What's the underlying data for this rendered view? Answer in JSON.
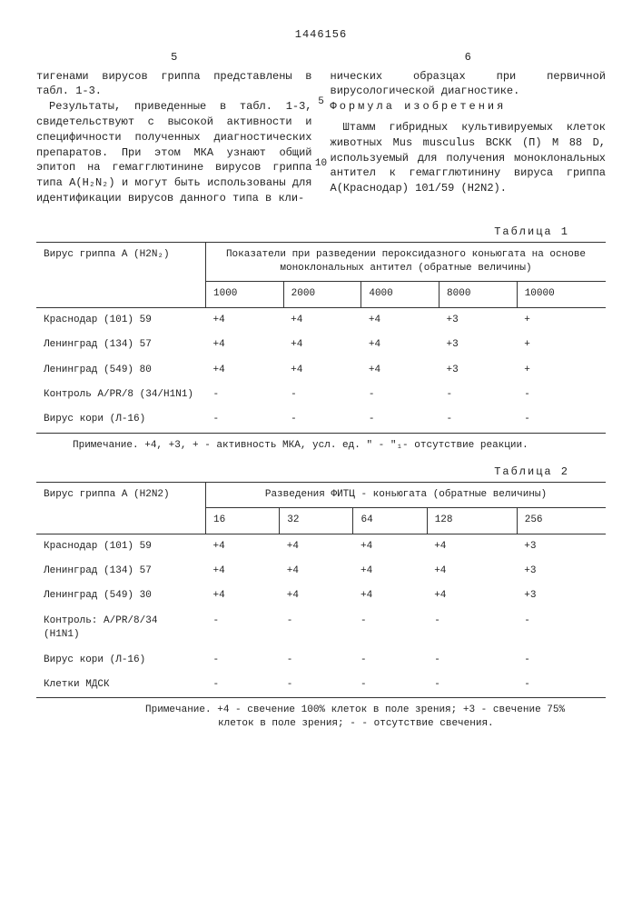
{
  "docNumber": "1446156",
  "leftColNum": "5",
  "rightColNum": "6",
  "leftCol": {
    "p1": "тигенами вирусов гриппа представлены в табл. 1-3.",
    "p2": "Результаты, приведенные в табл. 1-3, свидетельствуют с высокой активности и специфичности полученных диагностических препаратов. При этом МКА узнают общий эпитоп на гемагглютинине вирусов гриппа типа A(H₂N₂) и могут быть использованы для идентификации вирусов данного типа в кли-"
  },
  "lineMarkers": {
    "m5": "5",
    "m10": "10"
  },
  "rightCol": {
    "p1": "нических образцах при первичной вирусологической диагностике.",
    "formulaLabel": "Формула изобретения",
    "p2": "Штамм гибридных культивируемых клеток животных Mus musculus ВСКК (П) М 88 D, используемый для получения моноклональных антител к гемагглютинину вируса гриппа А(Краснодар) 101/59 (H2N2)."
  },
  "table1": {
    "label": "Таблица 1",
    "rowHeader": "Вирус гриппа A (H2N₂)",
    "colGroupHeader": "Показатели при разведении пероксидазного коньюгата на основе моноклональных антител (обратные величины)",
    "cols": [
      "1000",
      "2000",
      "4000",
      "8000",
      "10000"
    ],
    "rows": [
      {
        "name": "Краснодар (101) 59",
        "vals": [
          "+4",
          "+4",
          "+4",
          "+3",
          "+"
        ]
      },
      {
        "name": "Ленинград (134) 57",
        "vals": [
          "+4",
          "+4",
          "+4",
          "+3",
          "+"
        ]
      },
      {
        "name": "Ленинград (549) 80",
        "vals": [
          "+4",
          "+4",
          "+4",
          "+3",
          "+"
        ]
      },
      {
        "name": "Контроль A/PR/8 (34/H1N1)",
        "vals": [
          "-",
          "-",
          "-",
          "-",
          "-"
        ]
      },
      {
        "name": "Вирус кори (Л-16)",
        "vals": [
          "-",
          "-",
          "-",
          "-",
          "-"
        ]
      }
    ],
    "note": "Примечание. +4, +3, + - активность МКА, усл. ед. \" - \"₁- отсутствие реакции."
  },
  "table2": {
    "label": "Таблица 2",
    "rowHeader": "Вирус гриппа A (H2N2)",
    "colGroupHeader": "Разведения ФИТЦ - коньюгата (обратные величины)",
    "cols": [
      "16",
      "32",
      "64",
      "128",
      "256"
    ],
    "rows": [
      {
        "name": "Краснодар (101) 59",
        "vals": [
          "+4",
          "+4",
          "+4",
          "+4",
          "+3"
        ]
      },
      {
        "name": "Ленинград (134) 57",
        "vals": [
          "+4",
          "+4",
          "+4",
          "+4",
          "+3"
        ]
      },
      {
        "name": "Ленинград (549) 30",
        "vals": [
          "+4",
          "+4",
          "+4",
          "+4",
          "+3"
        ]
      },
      {
        "name": "Контроль: A/PR/8/34 (H1N1)",
        "vals": [
          "-",
          "-",
          "-",
          "-",
          "-"
        ]
      },
      {
        "name": "Вирус кори (Л-16)",
        "vals": [
          "-",
          "-",
          "-",
          "-",
          "-"
        ]
      },
      {
        "name": "Клетки МДСК",
        "vals": [
          "-",
          "-",
          "-",
          "-",
          "-"
        ]
      }
    ],
    "note": "Примечание. +4 - свечение 100% клеток в поле зрения; +3 - свечение 75% клеток в поле зрения; - - отсутствие свечения."
  }
}
